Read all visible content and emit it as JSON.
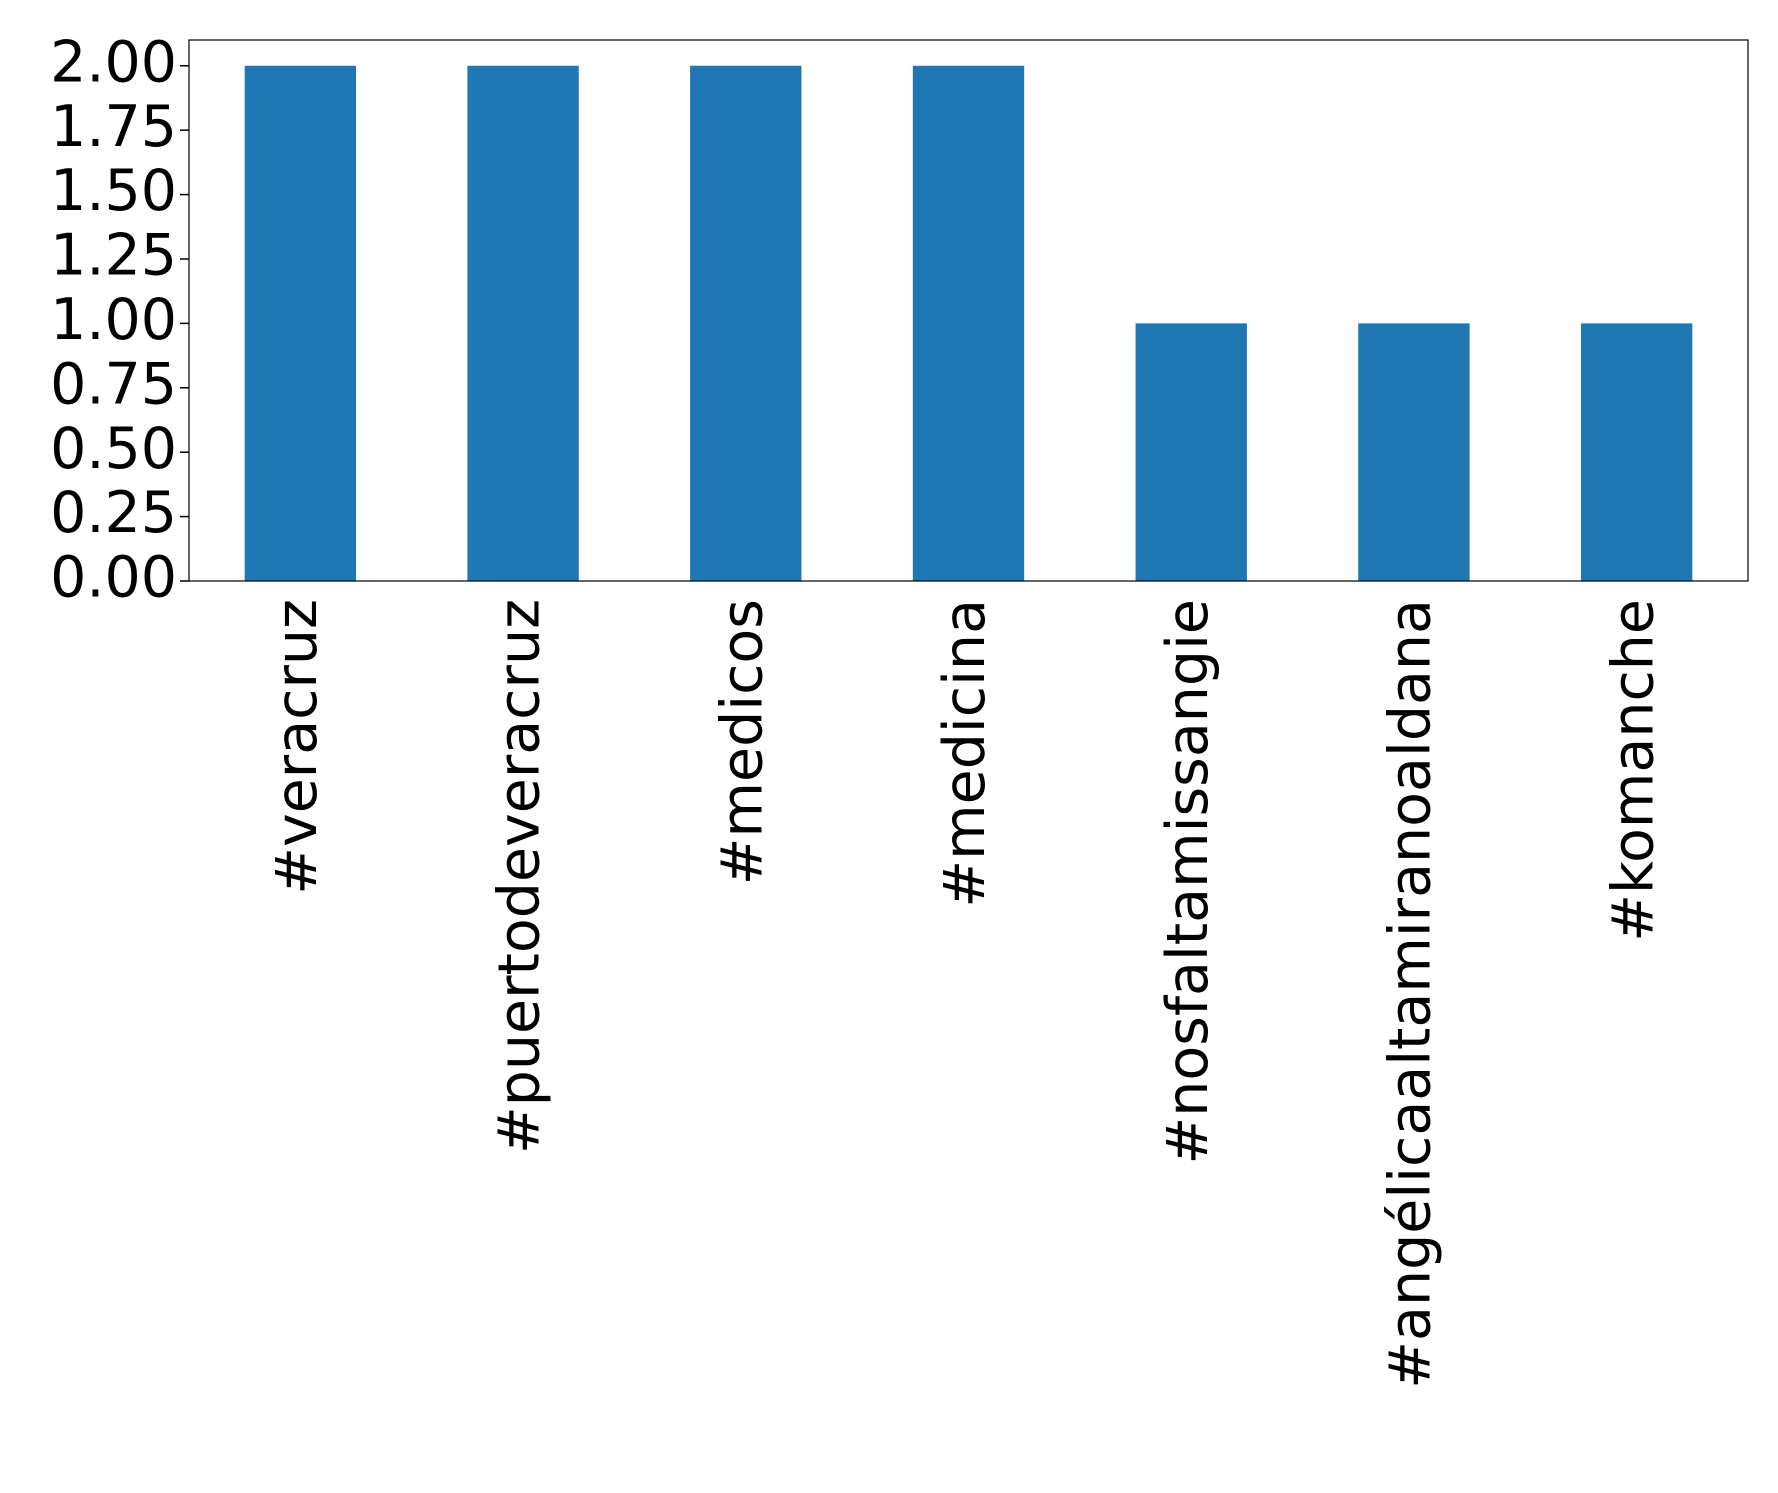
{
  "chart_data": {
    "type": "bar",
    "categories": [
      "#veracruz",
      "#puertodeveracruz",
      "#medicos",
      "#medicina",
      "#nosfaltamissangie",
      "#angélicaaltamiranoaldana",
      "#komanche"
    ],
    "values": [
      2,
      2,
      2,
      2,
      1,
      1,
      1
    ],
    "color": "#1f77b4",
    "ylim": [
      0,
      2.1
    ],
    "yticks": [
      {
        "value": 0,
        "label": "0.00"
      },
      {
        "value": 0.25,
        "label": "0.25"
      },
      {
        "value": 0.5,
        "label": "0.50"
      },
      {
        "value": 0.75,
        "label": "0.75"
      },
      {
        "value": 1,
        "label": "1.00"
      },
      {
        "value": 1.25,
        "label": "1.25"
      },
      {
        "value": 1.5,
        "label": "1.50"
      },
      {
        "value": 1.75,
        "label": "1.75"
      },
      {
        "value": 2,
        "label": "2.00"
      }
    ],
    "grid": false
  }
}
